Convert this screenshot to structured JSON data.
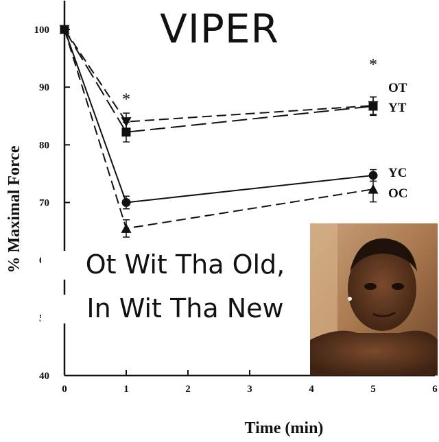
{
  "cover": {
    "title": "VIPER",
    "caption_line1": "Ot Wit Tha Old,",
    "caption_line2": "In Wit Tha New"
  },
  "chart_data": {
    "type": "line",
    "xlabel": "Time (min)",
    "ylabel": "% Maximal Force",
    "xlim": [
      0,
      6
    ],
    "ylim": [
      40,
      105
    ],
    "x_ticks": [
      0,
      1,
      2,
      3,
      4,
      5,
      6
    ],
    "y_ticks": [
      40,
      50,
      60,
      70,
      80,
      90,
      100
    ],
    "grid": false,
    "annotations": [
      {
        "text": "*",
        "x": 1,
        "y": 87
      },
      {
        "text": "*",
        "x": 5,
        "y": 93
      }
    ],
    "series": [
      {
        "name": "OT",
        "marker": "triangle-down",
        "line": "dash",
        "x": [
          0,
          1,
          5
        ],
        "y": [
          100,
          84,
          86.8
        ],
        "err": [
          0,
          1.5,
          1.5
        ]
      },
      {
        "name": "YT",
        "marker": "square",
        "line": "longdash",
        "x": [
          0,
          1,
          5
        ],
        "y": [
          100,
          82.2,
          86.7
        ],
        "err": [
          0,
          1.7,
          1.6
        ]
      },
      {
        "name": "YC",
        "marker": "circle",
        "line": "solid",
        "x": [
          0,
          1,
          5
        ],
        "y": [
          100,
          70,
          74.7
        ],
        "err": [
          0,
          1.1,
          1.0
        ]
      },
      {
        "name": "OC",
        "marker": "triangle-up",
        "line": "dash",
        "x": [
          0,
          1,
          5
        ],
        "y": [
          100,
          65.5,
          72.3
        ],
        "err": [
          0,
          1.5,
          2.2
        ]
      }
    ],
    "colors": {
      "ink": "#111111"
    }
  }
}
